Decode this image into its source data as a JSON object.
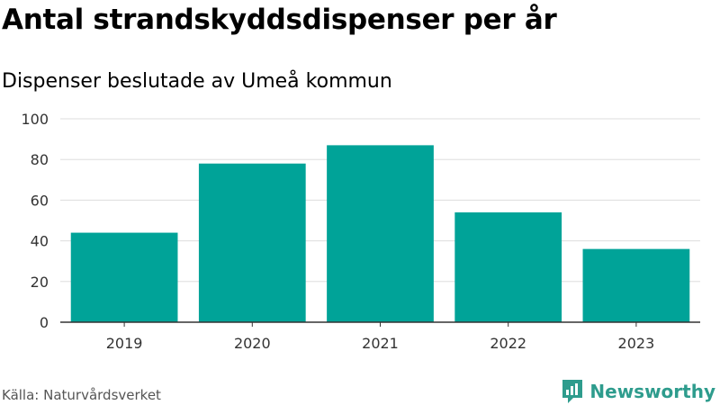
{
  "title": "Antal strandskyddsdispenser per år",
  "subtitle": "Dispenser beslutade av Umeå kommun",
  "source": "Källa: Naturvårdsverket",
  "brand": {
    "name": "Newsworthy",
    "icon": "newsworthy-logo-icon",
    "color": "#2e9c8d"
  },
  "colors": {
    "bar": "#00a398",
    "grid": "#dddddd",
    "axis": "#333333"
  },
  "chart_data": {
    "type": "bar",
    "categories": [
      "2019",
      "2020",
      "2021",
      "2022",
      "2023"
    ],
    "values": [
      44,
      78,
      87,
      54,
      36
    ],
    "ylim": [
      0,
      100
    ],
    "yticks": [
      0,
      20,
      40,
      60,
      80,
      100
    ],
    "xlabel": "",
    "ylabel": "",
    "grid": true,
    "legend": "none"
  }
}
